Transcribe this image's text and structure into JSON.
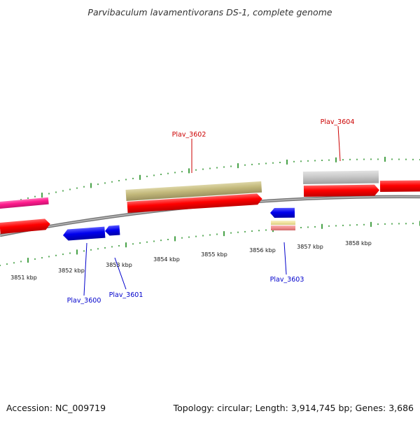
{
  "title": "Parvibaculum lavamentivorans DS-1, complete genome",
  "footer": {
    "accession": "Accession: NC_009719",
    "summary": "Topology: circular; Length: 3,914,745 bp; Genes: 3,686"
  },
  "colors": {
    "backbone": "#808080",
    "ticks": "#1a8a1a",
    "forward_label": "#cc0000",
    "reverse_label": "#0000cc",
    "cds_red": "#ff0000",
    "cds_blue": "#0000ee",
    "cds_olive": "#c2b87a",
    "cds_gray": "#c8c8c8",
    "cds_magenta": "#ff1a8c",
    "cds_pink": "#f08c8c",
    "cds_cream": "#f0e4a0"
  },
  "axis": {
    "unit": "kbp",
    "tick_labels": [
      "3851 kbp",
      "3852 kbp",
      "3853 kbp",
      "3854 kbp",
      "3855 kbp",
      "3856 kbp",
      "3857 kbp",
      "3858 kbp"
    ]
  },
  "genes": [
    {
      "label": "Plav_3600",
      "strand": "reverse"
    },
    {
      "label": "Plav_3601",
      "strand": "reverse"
    },
    {
      "label": "Plav_3602",
      "strand": "forward"
    },
    {
      "label": "Plav_3603",
      "strand": "reverse"
    },
    {
      "label": "Plav_3604",
      "strand": "forward"
    }
  ]
}
